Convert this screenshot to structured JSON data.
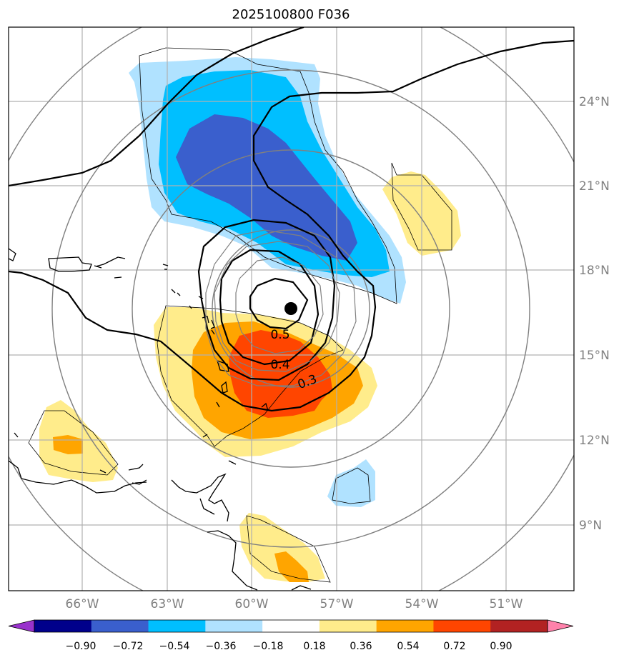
{
  "title": "2025100800 F036",
  "lat_labels": [
    "24°N",
    "21°N",
    "18°N",
    "15°N",
    "12°N",
    "9°N"
  ],
  "lon_labels": [
    "66°W",
    "63°W",
    "60°W",
    "57°W",
    "54°W",
    "51°W"
  ],
  "contour_labels": [
    "0.5",
    "0.4",
    "0.3"
  ],
  "colorbar": {
    "tick_labels": [
      "−0.90",
      "−0.72",
      "−0.54",
      "−0.36",
      "−0.18",
      "0.18",
      "0.36",
      "0.54",
      "0.72",
      "0.90"
    ],
    "colors": [
      "#9932cc",
      "#00008b",
      "#3a5fcd",
      "#00bfff",
      "#b0e2ff",
      "#ffffff",
      "#ffec8b",
      "#ffa500",
      "#ff4500",
      "#b22222",
      "#ff82ab"
    ]
  }
}
